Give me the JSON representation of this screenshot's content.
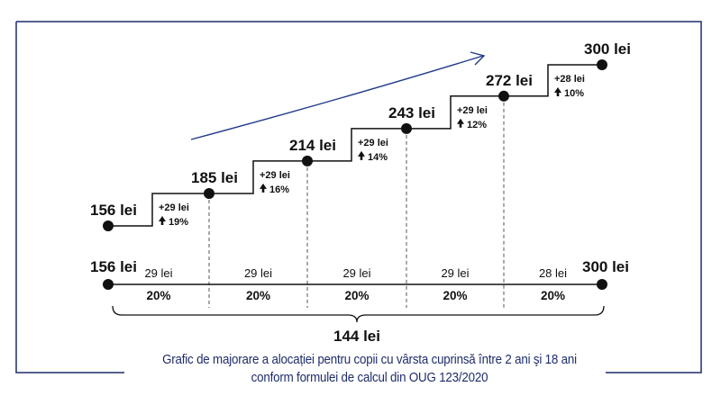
{
  "chart_data": {
    "type": "line",
    "subtype": "step",
    "currency": "lei",
    "points": [
      {
        "label": "156 lei",
        "value": 156
      },
      {
        "label": "185 lei",
        "value": 185
      },
      {
        "label": "214 lei",
        "value": 214
      },
      {
        "label": "243 lei",
        "value": 243
      },
      {
        "label": "272 lei",
        "value": 272
      },
      {
        "label": "300 lei",
        "value": 300
      }
    ],
    "increments": [
      {
        "amount": "+29 lei",
        "percent": "19%"
      },
      {
        "amount": "+29 lei",
        "percent": "16%"
      },
      {
        "amount": "+29 lei",
        "percent": "14%"
      },
      {
        "amount": "+29 lei",
        "percent": "12%"
      },
      {
        "amount": "+28 lei",
        "percent": "10%"
      }
    ],
    "timeline": {
      "start_label": "156 lei",
      "end_label": "300 lei",
      "segments": [
        {
          "amount": "29 lei",
          "percent": "20%"
        },
        {
          "amount": "29 lei",
          "percent": "20%"
        },
        {
          "amount": "29 lei",
          "percent": "20%"
        },
        {
          "amount": "29 lei",
          "percent": "20%"
        },
        {
          "amount": "28 lei",
          "percent": "20%"
        }
      ],
      "total_label": "144 lei"
    },
    "caption": [
      "Grafic de majorare a alocației pentru copii cu vârsta cuprinsă între 2 ani şi 18 ani",
      "conform formulei de calcul din OUG 123/2020"
    ],
    "grid": false,
    "legend": "none"
  },
  "colors": {
    "frame": "#1f2d6b",
    "trend_arrow": "#1f3a8a",
    "ink": "#111111"
  },
  "icons": {
    "increase": "up-arrow-icon"
  }
}
